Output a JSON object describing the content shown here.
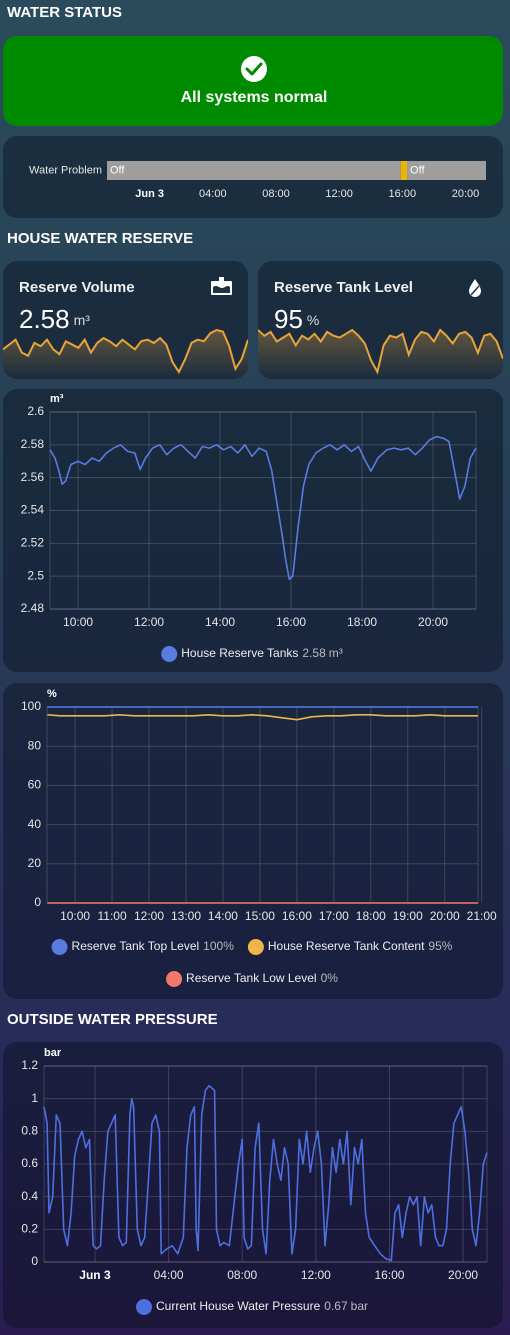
{
  "sections": [
    "WATER STATUS",
    "HOUSE WATER RESERVE",
    "OUTSIDE WATER PRESSURE"
  ],
  "status": {
    "text": "All systems normal"
  },
  "chart_data": [
    {
      "type": "timeline",
      "title": "Water Problem",
      "xlim": [
        -2.7,
        21.3
      ],
      "xticks": [
        {
          "value": 0,
          "label": "Jun 3"
        },
        {
          "value": 4,
          "label": "04:00"
        },
        {
          "value": 8,
          "label": "08:00"
        },
        {
          "value": 12,
          "label": "12:00"
        },
        {
          "value": 16,
          "label": "16:00"
        },
        {
          "value": 20,
          "label": "20:00"
        }
      ],
      "segments": [
        {
          "label": "Off",
          "start": -2.7,
          "end": 15.9,
          "color": "#9e9e9e"
        },
        {
          "start": 15.9,
          "end": 16.3,
          "color": "#f0b400"
        },
        {
          "label": "Off",
          "start": 16.3,
          "end": 21.3,
          "color": "#9e9e9e"
        }
      ]
    },
    {
      "type": "sparkline",
      "title": "Reserve Volume",
      "current": 2.58,
      "unit": "m³",
      "color": "#e8a33a",
      "values": [
        2.572,
        2.575,
        2.578,
        2.57,
        2.568,
        2.576,
        2.574,
        2.578,
        2.572,
        2.569,
        2.577,
        2.575,
        2.573,
        2.578,
        2.57,
        2.576,
        2.579,
        2.577,
        2.574,
        2.578,
        2.575,
        2.572,
        2.577,
        2.578,
        2.576,
        2.579,
        2.575,
        2.564,
        2.558,
        2.566,
        2.576,
        2.578,
        2.577,
        2.582,
        2.584,
        2.583,
        2.574,
        2.56,
        2.566,
        2.578
      ]
    },
    {
      "type": "sparkline",
      "title": "Reserve Tank Level",
      "current": 95,
      "unit": "%",
      "color": "#e8a33a",
      "values": [
        95.8,
        95.5,
        95.7,
        95.2,
        95.4,
        95.6,
        95,
        95.5,
        95.3,
        95.6,
        95.2,
        95.7,
        95.5,
        95.4,
        95.6,
        95.8,
        95.5,
        95.1,
        94.2,
        93.6,
        95,
        95.5,
        95.4,
        95.6,
        94.5,
        95.3,
        95.7,
        95.6,
        95.2,
        95.8,
        95.5,
        95.1,
        95.6,
        95.7,
        95.4,
        94.6,
        95.5,
        95.6,
        95.2,
        94.3
      ]
    },
    {
      "type": "line",
      "y_label": "m³",
      "xlim": [
        9.21,
        21.21
      ],
      "ylim": [
        2.48,
        2.6
      ],
      "grid": true,
      "yticks": [
        2.48,
        2.5,
        2.52,
        2.54,
        2.56,
        2.58,
        2.6
      ],
      "xticks": [
        {
          "value": 10,
          "label": "10:00"
        },
        {
          "value": 12,
          "label": "12:00"
        },
        {
          "value": 14,
          "label": "14:00"
        },
        {
          "value": 16,
          "label": "16:00"
        },
        {
          "value": 18,
          "label": "18:00"
        },
        {
          "value": 20,
          "label": "20:00"
        }
      ],
      "x": [
        9.21,
        9.35,
        9.45,
        9.55,
        9.65,
        9.8,
        10.0,
        10.2,
        10.4,
        10.6,
        10.8,
        11.0,
        11.2,
        11.4,
        11.6,
        11.75,
        11.9,
        12.1,
        12.3,
        12.5,
        12.7,
        12.9,
        13.1,
        13.3,
        13.5,
        13.7,
        13.9,
        14.1,
        14.3,
        14.5,
        14.7,
        14.9,
        15.1,
        15.3,
        15.45,
        15.6,
        15.75,
        15.85,
        15.95,
        16.05,
        16.2,
        16.35,
        16.5,
        16.7,
        16.9,
        17.1,
        17.3,
        17.5,
        17.7,
        17.9,
        18.1,
        18.25,
        18.45,
        18.7,
        18.9,
        19.1,
        19.3,
        19.5,
        19.7,
        19.9,
        20.1,
        20.3,
        20.45,
        20.6,
        20.75,
        20.9,
        21.05,
        21.21
      ],
      "series": [
        {
          "name": "House Reserve Tanks",
          "color": "#5a7be0",
          "current": 2.58,
          "unit": "m³",
          "values": [
            2.577,
            2.572,
            2.565,
            2.556,
            2.558,
            2.568,
            2.57,
            2.568,
            2.572,
            2.57,
            2.575,
            2.578,
            2.58,
            2.576,
            2.575,
            2.565,
            2.572,
            2.578,
            2.58,
            2.574,
            2.578,
            2.58,
            2.576,
            2.572,
            2.579,
            2.578,
            2.58,
            2.577,
            2.579,
            2.575,
            2.58,
            2.573,
            2.578,
            2.576,
            2.565,
            2.545,
            2.525,
            2.51,
            2.498,
            2.5,
            2.53,
            2.555,
            2.568,
            2.575,
            2.578,
            2.58,
            2.577,
            2.58,
            2.576,
            2.579,
            2.57,
            2.564,
            2.572,
            2.577,
            2.578,
            2.577,
            2.578,
            2.574,
            2.578,
            2.583,
            2.585,
            2.584,
            2.582,
            2.565,
            2.547,
            2.555,
            2.572,
            2.578
          ]
        }
      ]
    },
    {
      "type": "line",
      "y_label": "%",
      "xlim": [
        9.24,
        20.9
      ],
      "ylim": [
        0,
        100
      ],
      "grid": true,
      "yticks": [
        0,
        20,
        40,
        60,
        80,
        100
      ],
      "xticks": [
        {
          "value": 10,
          "label": "10:00"
        },
        {
          "value": 11,
          "label": "11:00"
        },
        {
          "value": 12,
          "label": "12:00"
        },
        {
          "value": 13,
          "label": "13:00"
        },
        {
          "value": 14,
          "label": "14:00"
        },
        {
          "value": 15,
          "label": "15:00"
        },
        {
          "value": 16,
          "label": "16:00"
        },
        {
          "value": 17,
          "label": "17:00"
        },
        {
          "value": 18,
          "label": "18:00"
        },
        {
          "value": 19,
          "label": "19:00"
        },
        {
          "value": 20,
          "label": "20:00"
        },
        {
          "value": 21,
          "label": "21:00"
        }
      ],
      "x": [
        9.25,
        9.6,
        10.0,
        10.4,
        10.8,
        11.2,
        11.6,
        12.0,
        12.4,
        12.8,
        13.2,
        13.6,
        14.0,
        14.4,
        14.8,
        15.2,
        15.6,
        16.0,
        16.4,
        16.8,
        17.2,
        17.6,
        18.0,
        18.4,
        18.8,
        19.2,
        19.6,
        20.0,
        20.4,
        20.9
      ],
      "series": [
        {
          "name": "Reserve Tank Top Level",
          "color": "#5a7be0",
          "current": 100,
          "unit": "%",
          "values": [
            100,
            100,
            100,
            100,
            100,
            100,
            100,
            100,
            100,
            100,
            100,
            100,
            100,
            100,
            100,
            100,
            100,
            100,
            100,
            100,
            100,
            100,
            100,
            100,
            100,
            100,
            100,
            100,
            100,
            100
          ]
        },
        {
          "name": "House Reserve Tank Content",
          "color": "#f0b548",
          "current": 95,
          "unit": "%",
          "values": [
            96,
            95.5,
            95.5,
            95.5,
            95.5,
            96,
            95.5,
            95.5,
            95.5,
            95.5,
            95.5,
            96,
            95.5,
            95.5,
            96,
            95.5,
            94.5,
            93.5,
            95,
            95.5,
            95.5,
            96,
            96,
            95.5,
            95.5,
            95.5,
            96,
            95.5,
            95.5,
            95.5
          ]
        },
        {
          "name": "Reserve Tank Low Level",
          "color": "#f2786a",
          "current": 0,
          "unit": "%",
          "values": [
            0,
            0,
            0,
            0,
            0,
            0,
            0,
            0,
            0,
            0,
            0,
            0,
            0,
            0,
            0,
            0,
            0,
            0,
            0,
            0,
            0,
            0,
            0,
            0,
            0,
            0,
            0,
            0,
            0,
            0
          ]
        }
      ]
    },
    {
      "type": "line",
      "y_label": "bar",
      "xlim": [
        -2.77,
        21.3
      ],
      "ylim": [
        0,
        1.2
      ],
      "grid": true,
      "yticks": [
        0,
        0.2,
        0.4,
        0.6,
        0.8,
        1,
        1.2
      ],
      "xticks": [
        {
          "value": 0,
          "label": "Jun 3"
        },
        {
          "value": 4,
          "label": "04:00"
        },
        {
          "value": 8,
          "label": "08:00"
        },
        {
          "value": 12,
          "label": "12:00"
        },
        {
          "value": 16,
          "label": "16:00"
        },
        {
          "value": 20,
          "label": "20:00"
        }
      ],
      "x": [
        -2.77,
        -2.6,
        -2.5,
        -2.3,
        -2.1,
        -1.9,
        -1.7,
        -1.5,
        -1.3,
        -1.1,
        -0.9,
        -0.7,
        -0.5,
        -0.3,
        -0.1,
        0.1,
        0.3,
        0.5,
        0.7,
        0.9,
        1.1,
        1.3,
        1.5,
        1.7,
        1.9,
        2.0,
        2.1,
        2.3,
        2.5,
        2.7,
        2.9,
        3.1,
        3.3,
        3.5,
        3.6,
        3.9,
        4.2,
        4.5,
        4.8,
        5.0,
        5.2,
        5.4,
        5.5,
        5.6,
        5.8,
        6.0,
        6.2,
        6.5,
        6.6,
        6.8,
        7.0,
        7.3,
        7.5,
        7.8,
        8.0,
        8.1,
        8.3,
        8.5,
        8.7,
        8.9,
        9.1,
        9.3,
        9.5,
        9.7,
        9.9,
        10.1,
        10.3,
        10.5,
        10.7,
        10.9,
        11.1,
        11.3,
        11.5,
        11.7,
        11.9,
        12.1,
        12.3,
        12.5,
        12.7,
        12.9,
        13.1,
        13.3,
        13.5,
        13.7,
        13.9,
        14.1,
        14.3,
        14.5,
        14.7,
        14.9,
        15.2,
        15.5,
        15.8,
        16.1,
        16.3,
        16.5,
        16.7,
        16.9,
        17.1,
        17.3,
        17.5,
        17.7,
        17.9,
        18.1,
        18.3,
        18.5,
        18.7,
        18.9,
        19.1,
        19.3,
        19.5,
        19.7,
        19.9,
        20.1,
        20.3,
        20.5,
        20.7,
        20.9,
        21.1,
        21.3
      ],
      "series": [
        {
          "name": "Current House Water Pressure",
          "color": "#4d6fe0",
          "current": 0.67,
          "unit": "bar",
          "values": [
            0.95,
            0.85,
            0.3,
            0.4,
            0.9,
            0.85,
            0.2,
            0.1,
            0.3,
            0.65,
            0.75,
            0.8,
            0.7,
            0.75,
            0.1,
            0.08,
            0.1,
            0.5,
            0.8,
            0.85,
            0.9,
            0.15,
            0.1,
            0.12,
            0.9,
            1.0,
            0.95,
            0.2,
            0.1,
            0.15,
            0.5,
            0.85,
            0.9,
            0.8,
            0.05,
            0.08,
            0.1,
            0.05,
            0.15,
            0.7,
            0.9,
            0.95,
            0.2,
            0.07,
            0.9,
            1.05,
            1.08,
            1.05,
            0.2,
            0.1,
            0.12,
            0.1,
            0.3,
            0.6,
            0.75,
            0.15,
            0.08,
            0.1,
            0.7,
            0.85,
            0.2,
            0.05,
            0.5,
            0.75,
            0.6,
            0.5,
            0.7,
            0.6,
            0.05,
            0.2,
            0.75,
            0.6,
            0.8,
            0.55,
            0.7,
            0.8,
            0.6,
            0.1,
            0.35,
            0.7,
            0.55,
            0.75,
            0.6,
            0.8,
            0.35,
            0.7,
            0.6,
            0.75,
            0.3,
            0.15,
            0.1,
            0.05,
            0.02,
            0.01,
            0.3,
            0.35,
            0.15,
            0.3,
            0.4,
            0.35,
            0.4,
            0.1,
            0.4,
            0.3,
            0.35,
            0.15,
            0.1,
            0.1,
            0.2,
            0.6,
            0.85,
            0.9,
            0.95,
            0.8,
            0.55,
            0.2,
            0.1,
            0.3,
            0.6,
            0.67
          ]
        }
      ]
    }
  ]
}
